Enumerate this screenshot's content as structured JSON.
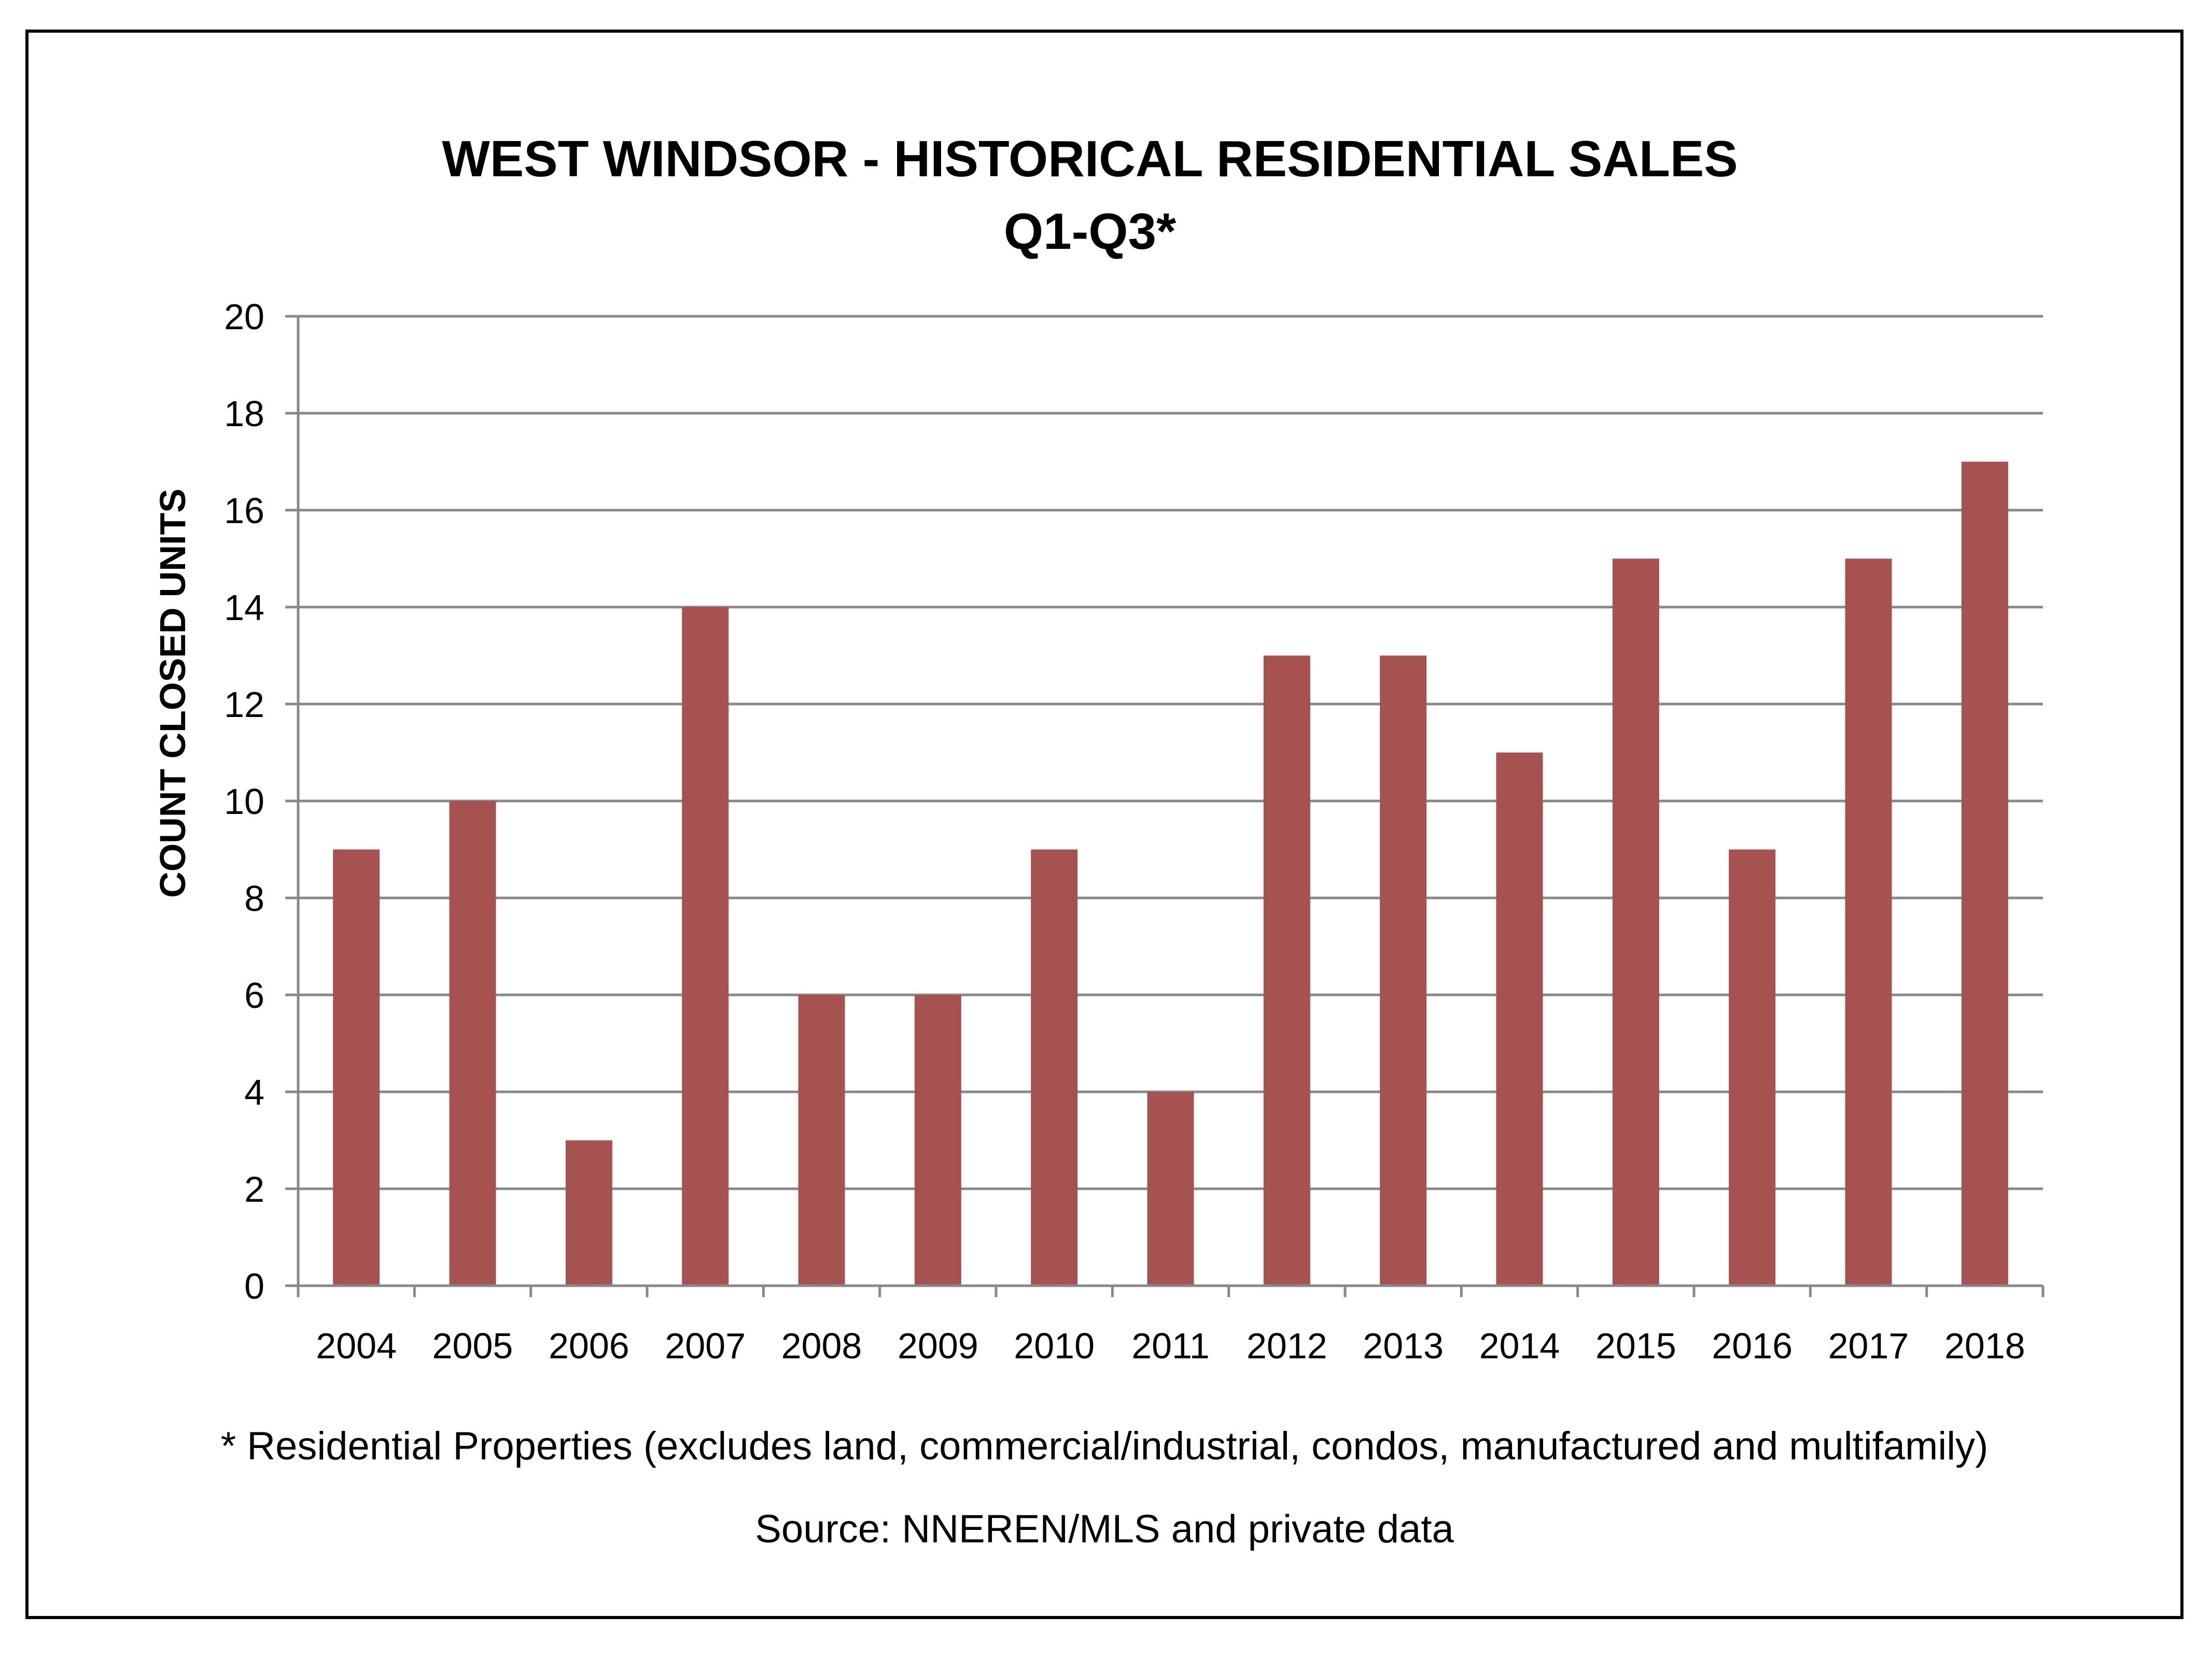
{
  "colors": {
    "bar": "#a65250",
    "grid": "#888888",
    "axis": "#888888",
    "frame": "#000000",
    "text": "#000000"
  },
  "chart_data": {
    "type": "bar",
    "title": "WEST WINDSOR - HISTORICAL RESIDENTIAL SALES",
    "subtitle": "Q1-Q3*",
    "xlabel": "",
    "ylabel": "COUNT CLOSED UNITS",
    "categories": [
      "2004",
      "2005",
      "2006",
      "2007",
      "2008",
      "2009",
      "2010",
      "2011",
      "2012",
      "2013",
      "2014",
      "2015",
      "2016",
      "2017",
      "2018"
    ],
    "values": [
      9,
      10,
      3,
      14,
      6,
      6,
      9,
      4,
      13,
      13,
      11,
      15,
      9,
      15,
      17
    ],
    "ylim": [
      0,
      20
    ],
    "yticks": [
      "0",
      "2",
      "4",
      "6",
      "8",
      "10",
      "12",
      "14",
      "16",
      "18",
      "20"
    ],
    "grid": true,
    "legend": "none",
    "footnote": "* Residential Properties (excludes land, commercial/industrial, condos, manufactured and multifamily)",
    "source": "Source: NNEREN/MLS and private data"
  }
}
